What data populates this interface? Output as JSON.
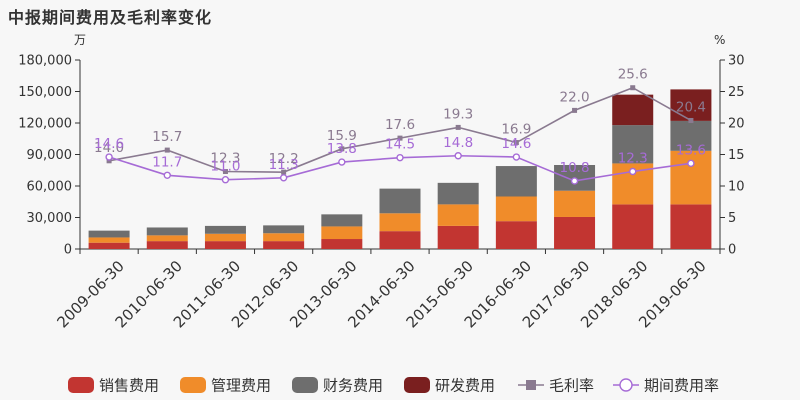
{
  "title": "中报期间费用及毛利率变化",
  "chart_data": {
    "type": "bar",
    "stacked": true,
    "categories": [
      "2009-06-30",
      "2010-06-30",
      "2011-06-30",
      "2012-06-30",
      "2013-06-30",
      "2014-06-30",
      "2015-06-30",
      "2016-06-30",
      "2017-06-30",
      "2018-06-30",
      "2019-06-30"
    ],
    "left_axis": {
      "unit": "万",
      "ylim": [
        0,
        180000
      ],
      "ticks": [
        "0",
        "30,000",
        "60,000",
        "90,000",
        "120,000",
        "150,000",
        "180,000"
      ]
    },
    "right_axis": {
      "unit": "%",
      "ylim": [
        0,
        30
      ],
      "ticks": [
        "0",
        "5",
        "10",
        "15",
        "20",
        "25",
        "30"
      ]
    },
    "bar_series": [
      {
        "name": "销售费用",
        "color": "#c23531",
        "values": [
          6000,
          7500,
          7500,
          7500,
          9500,
          17000,
          22000,
          26500,
          30500,
          42500,
          42500
        ]
      },
      {
        "name": "管理费用",
        "color": "#f08c2a",
        "values": [
          5000,
          5500,
          7000,
          7500,
          12000,
          17000,
          20500,
          23500,
          25000,
          39000,
          51000
        ]
      },
      {
        "name": "财务费用",
        "color": "#6e6e6e",
        "values": [
          6500,
          7500,
          7500,
          7500,
          11500,
          23500,
          20500,
          29000,
          24500,
          36500,
          28500
        ]
      },
      {
        "name": "研发费用",
        "color": "#7a1f1f",
        "values": [
          0,
          0,
          0,
          0,
          0,
          0,
          0,
          0,
          0,
          29000,
          30000
        ]
      }
    ],
    "line_series": [
      {
        "name": "毛利率",
        "color": "#8a7a90",
        "marker": "square",
        "values": [
          14.0,
          15.7,
          12.3,
          12.2,
          15.9,
          17.6,
          19.3,
          16.9,
          22.0,
          25.6,
          20.4
        ],
        "labels": [
          "14.0",
          "15.7",
          "12.3",
          "12.2",
          "15.9",
          "17.6",
          "19.3",
          "16.9",
          "22.0",
          "25.6",
          "20.4"
        ]
      },
      {
        "name": "期间费用率",
        "color": "#a66bd6",
        "marker": "circle",
        "values": [
          14.6,
          11.7,
          11.0,
          11.3,
          13.8,
          14.5,
          14.8,
          14.6,
          10.8,
          12.3,
          13.6
        ],
        "labels": [
          "14.6",
          "11.7",
          "11.0",
          "11.3",
          "13.8",
          "14.5",
          "14.8",
          "14.6",
          "10.8",
          "12.3",
          "13.6"
        ]
      }
    ],
    "legend_position": "bottom",
    "grid": false
  }
}
